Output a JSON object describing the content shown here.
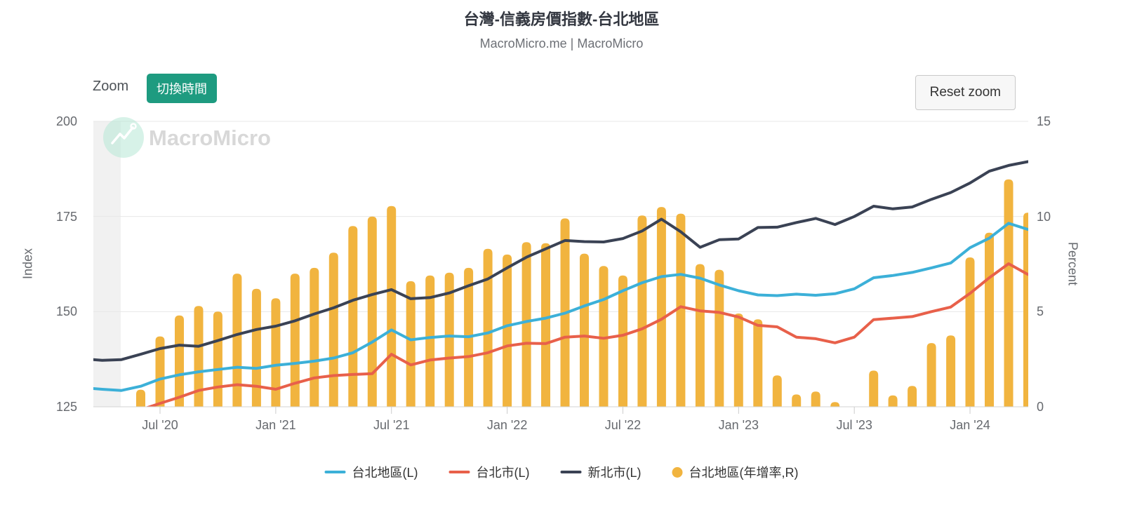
{
  "header": {
    "title": "台灣-信義房價指數-台北地區",
    "subtitle": "MacroMicro.me | MacroMicro"
  },
  "toolbar": {
    "zoom_label": "Zoom",
    "toggle_time_label": "切換時間",
    "reset_zoom_label": "Reset zoom"
  },
  "watermark": {
    "text": "MacroMicro"
  },
  "colors": {
    "taipei_area_line": "#3CB0D8",
    "taipei_city_line": "#E8604A",
    "new_taipei_line": "#3A4254",
    "yoy_bars": "#F1B43F",
    "button_green": "#1E9B80",
    "watermark_mint": "#B7E7D6"
  },
  "legend": {
    "items": [
      {
        "label": "台北地區(L)",
        "color_key": "taipei_area_line",
        "swatch": "line"
      },
      {
        "label": "台北市(L)",
        "color_key": "taipei_city_line",
        "swatch": "line"
      },
      {
        "label": "新北市(L)",
        "color_key": "new_taipei_line",
        "swatch": "line"
      },
      {
        "label": "台北地區(年增率,R)",
        "color_key": "yoy_bars",
        "swatch": "circle"
      }
    ]
  },
  "chart_data": {
    "type": "mixed",
    "title": "台灣-信義房價指數-台北地區",
    "grid": true,
    "legend_position": "bottom",
    "x": [
      "2020-03",
      "2020-04",
      "2020-05",
      "2020-06",
      "2020-07",
      "2020-08",
      "2020-09",
      "2020-10",
      "2020-11",
      "2020-12",
      "2021-01",
      "2021-02",
      "2021-03",
      "2021-04",
      "2021-05",
      "2021-06",
      "2021-07",
      "2021-08",
      "2021-09",
      "2021-10",
      "2021-11",
      "2021-12",
      "2022-01",
      "2022-02",
      "2022-03",
      "2022-04",
      "2022-05",
      "2022-06",
      "2022-07",
      "2022-08",
      "2022-09",
      "2022-10",
      "2022-11",
      "2022-12",
      "2023-01",
      "2023-02",
      "2023-03",
      "2023-04",
      "2023-05",
      "2023-06",
      "2023-07",
      "2023-08",
      "2023-09",
      "2023-10",
      "2023-11",
      "2023-12",
      "2024-01",
      "2024-02",
      "2024-03",
      "2024-04"
    ],
    "x_axis": {
      "labels": [
        {
          "text": "Jul '20",
          "month_index": 4
        },
        {
          "text": "Jan '21",
          "month_index": 10
        },
        {
          "text": "Jul '21",
          "month_index": 16
        },
        {
          "text": "Jan '22",
          "month_index": 22
        },
        {
          "text": "Jul '22",
          "month_index": 28
        },
        {
          "text": "Jan '23",
          "month_index": 34
        },
        {
          "text": "Jul '23",
          "month_index": 40
        },
        {
          "text": "Jan '24",
          "month_index": 46
        }
      ]
    },
    "left_axis": {
      "title": "Index",
      "min": 125,
      "max": 200,
      "ticks": [
        200,
        175,
        150,
        125
      ]
    },
    "right_axis": {
      "title": "Percent",
      "min": 0,
      "max": 15,
      "ticks": [
        15,
        10,
        5,
        0
      ]
    },
    "series": [
      {
        "name": "台北地區(L)",
        "type": "line",
        "axis": "left",
        "color_key": "taipei_area_line",
        "values": [
          130.0,
          129.6,
          129.3,
          130.4,
          132.3,
          133.4,
          134.2,
          134.8,
          135.4,
          135.1,
          135.9,
          136.4,
          137.0,
          137.8,
          139.2,
          142.0,
          145.2,
          142.6,
          143.2,
          143.6,
          143.4,
          144.4,
          146.3,
          147.4,
          148.3,
          149.6,
          151.5,
          153.2,
          155.5,
          157.6,
          159.2,
          159.8,
          158.8,
          157.0,
          155.5,
          154.4,
          154.2,
          154.6,
          154.3,
          154.7,
          156.0,
          158.9,
          159.5,
          160.3,
          161.5,
          162.8,
          166.8,
          169.3,
          173.2,
          171.6
        ]
      },
      {
        "name": "台北市(L)",
        "type": "line",
        "axis": "left",
        "color_key": "taipei_city_line",
        "values": [
          null,
          null,
          null,
          124.2,
          125.9,
          127.5,
          129.3,
          130.2,
          130.8,
          130.4,
          129.6,
          131.2,
          132.6,
          133.2,
          133.5,
          133.7,
          138.8,
          136.0,
          137.3,
          137.8,
          138.2,
          139.2,
          141.0,
          141.7,
          141.6,
          143.3,
          143.6,
          143.0,
          143.8,
          145.5,
          148.0,
          151.3,
          150.2,
          149.8,
          148.6,
          146.4,
          146.0,
          143.3,
          142.9,
          141.8,
          143.3,
          147.9,
          148.3,
          148.7,
          150.0,
          151.2,
          154.8,
          158.9,
          162.6,
          159.8
        ]
      },
      {
        "name": "新北市(L)",
        "type": "line",
        "axis": "left",
        "color_key": "new_taipei_line",
        "values": [
          137.6,
          137.2,
          137.4,
          138.8,
          140.3,
          141.2,
          140.9,
          142.4,
          144.0,
          145.3,
          146.2,
          147.6,
          149.4,
          151.0,
          153.0,
          154.5,
          155.8,
          153.4,
          153.7,
          154.9,
          156.8,
          158.6,
          161.5,
          164.3,
          166.5,
          168.7,
          168.4,
          168.3,
          169.2,
          171.2,
          174.3,
          171.0,
          166.9,
          168.9,
          169.1,
          172.1,
          172.2,
          173.4,
          174.5,
          172.9,
          175.0,
          177.7,
          177.0,
          177.5,
          179.5,
          181.3,
          183.8,
          186.9,
          188.4,
          189.4
        ]
      },
      {
        "name": "台北地區(年增率,R)",
        "type": "bar",
        "axis": "right",
        "color_key": "yoy_bars",
        "values": [
          null,
          null,
          null,
          0.9,
          3.7,
          4.8,
          5.3,
          5.0,
          7.0,
          6.2,
          5.7,
          7.0,
          7.3,
          8.1,
          9.5,
          10.0,
          10.55,
          6.6,
          6.9,
          7.05,
          7.3,
          8.3,
          8.0,
          8.65,
          8.6,
          9.9,
          8.05,
          7.4,
          6.9,
          10.05,
          10.5,
          10.15,
          7.5,
          7.2,
          4.9,
          4.6,
          1.65,
          0.65,
          0.8,
          0.25,
          0.0,
          1.9,
          0.6,
          1.1,
          3.35,
          3.75,
          7.85,
          9.15,
          11.95,
          10.2
        ]
      }
    ]
  }
}
